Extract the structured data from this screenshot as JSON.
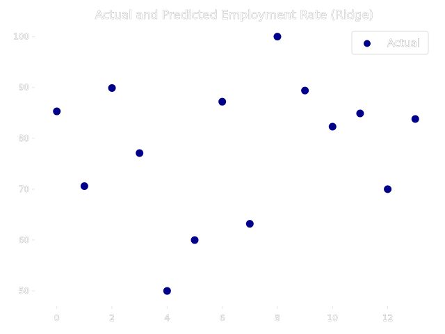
{
  "chart_data": {
    "type": "scatter",
    "title": "Actual and Predicted Employment Rate (Ridge)",
    "xlabel": "",
    "ylabel": "",
    "xlim": [
      -0.8,
      13.7
    ],
    "ylim": [
      47,
      102
    ],
    "xticks": [
      0,
      2,
      4,
      6,
      8,
      10,
      12
    ],
    "yticks": [
      50,
      60,
      70,
      80,
      90,
      100
    ],
    "grid": false,
    "legend": "top-right",
    "series": [
      {
        "name": "Actual",
        "color": "#00008b",
        "x": [
          0,
          1,
          2,
          3,
          4,
          5,
          6,
          7,
          8,
          9,
          10,
          11,
          12,
          13
        ],
        "y": [
          85.3,
          70.6,
          89.9,
          77.1,
          50.0,
          60.0,
          87.2,
          63.2,
          100.0,
          89.4,
          82.3,
          84.9,
          70.0,
          83.8
        ]
      }
    ]
  }
}
